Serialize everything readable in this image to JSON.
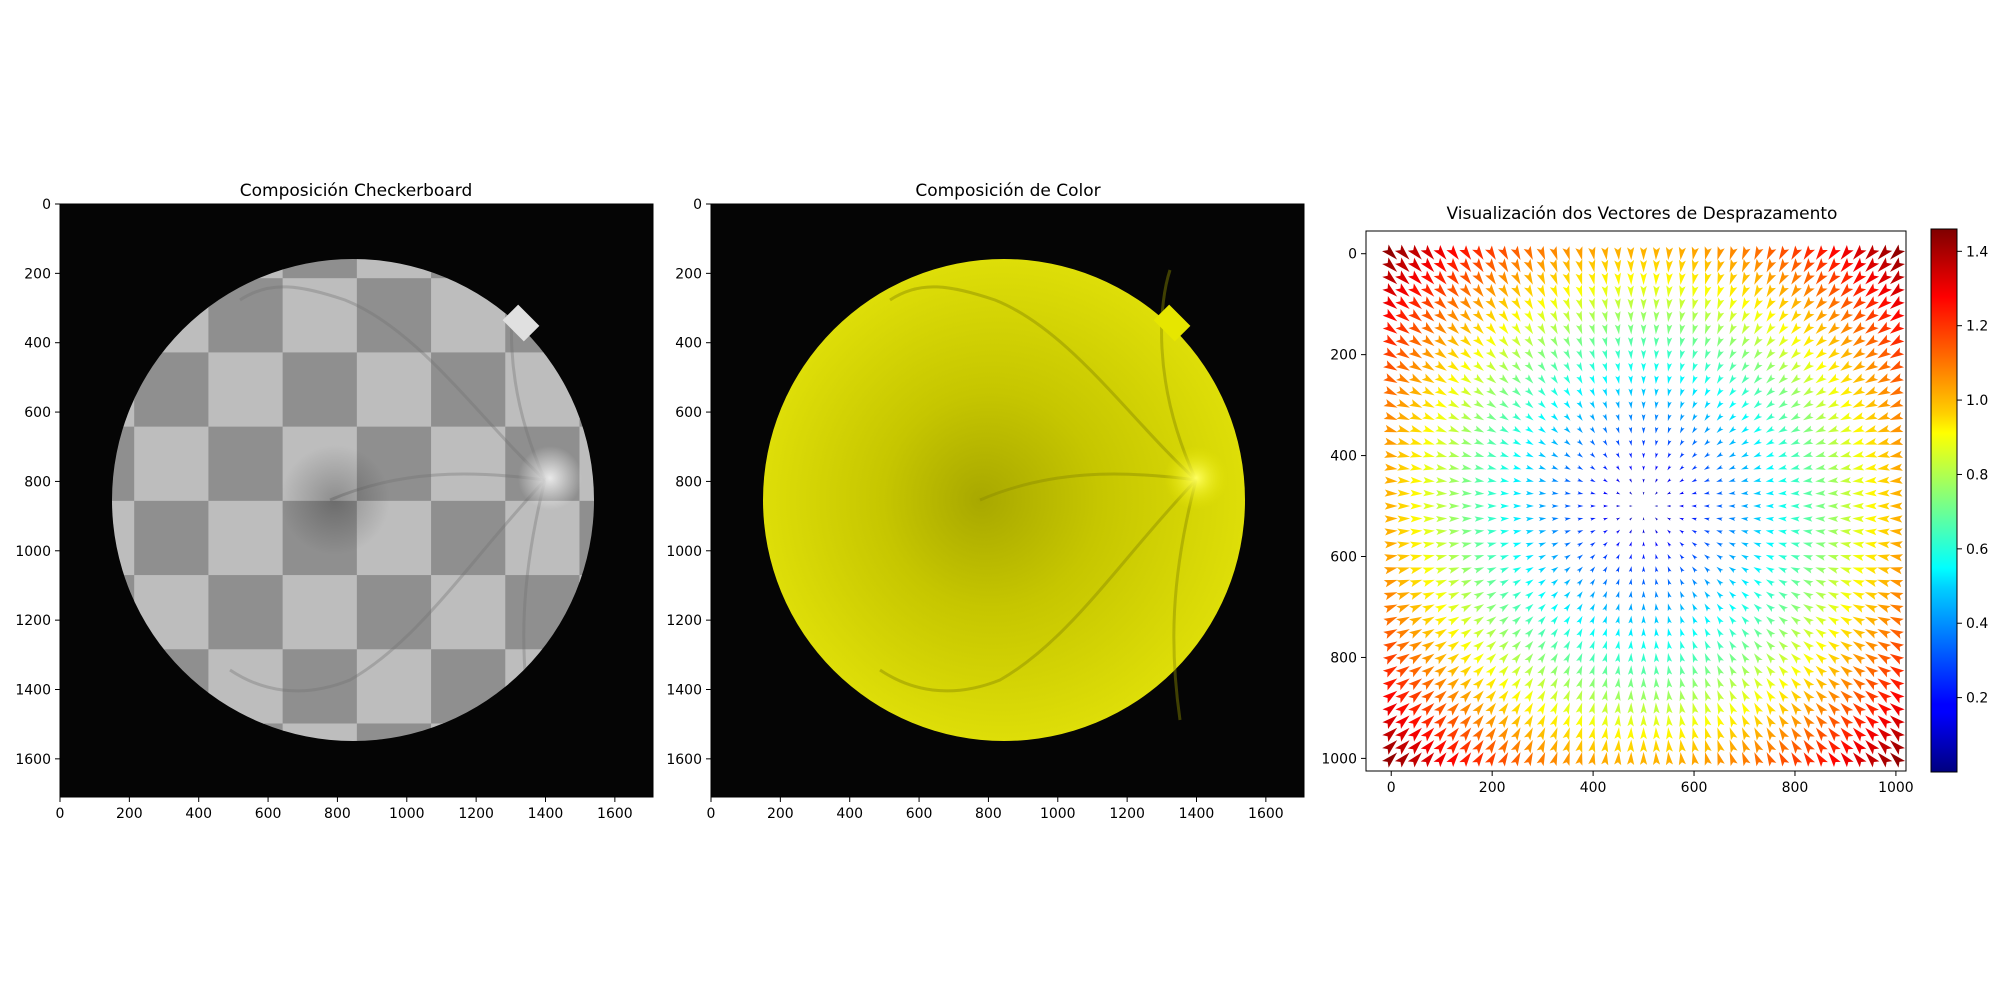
{
  "chart_data": [
    {
      "type": "image",
      "title": "Composición Checkerboard",
      "x_ticks": [
        0,
        200,
        400,
        600,
        800,
        1000,
        1200,
        1400,
        1600
      ],
      "y_ticks": [
        0,
        200,
        400,
        600,
        800,
        1000,
        1200,
        1400,
        1600
      ],
      "xlim": [
        0,
        1710
      ],
      "ylim": [
        1710,
        0
      ],
      "image": {
        "content": "retinal fundus photograph, grayscale checkerboard composite",
        "disc_center": [
          845,
          855
        ],
        "disc_radius": 695,
        "checker_size": 214,
        "light_color": "#bdbdbd",
        "dark_color": "#8f8f8f",
        "background": "#050505"
      }
    },
    {
      "type": "image",
      "title": "Composición de Color",
      "x_ticks": [
        0,
        200,
        400,
        600,
        800,
        1000,
        1200,
        1400,
        1600
      ],
      "y_ticks": [
        0,
        200,
        400,
        600,
        800,
        1000,
        1200,
        1400,
        1600
      ],
      "xlim": [
        0,
        1710
      ],
      "ylim": [
        1710,
        0
      ],
      "image": {
        "content": "retinal fundus photograph, yellow color composite",
        "disc_center": [
          845,
          855
        ],
        "disc_radius": 695,
        "fundus_color": "#d8d800",
        "background": "#050505"
      }
    },
    {
      "type": "quiver",
      "title": "Visualización dos Vectores de Desprazamento",
      "x_ticks": [
        0,
        200,
        400,
        600,
        800,
        1000
      ],
      "y_ticks": [
        0,
        200,
        400,
        600,
        800,
        1000
      ],
      "xlim": [
        -50,
        1020
      ],
      "ylim": [
        1025,
        -45
      ],
      "grid": {
        "start": 0,
        "step": 25,
        "count": 41
      },
      "center": [
        500,
        500
      ],
      "colormap": "jet",
      "colorbar": {
        "ticks": [
          0.2,
          0.4,
          0.6,
          0.8,
          1.0,
          1.2,
          1.4
        ],
        "range": [
          0.0,
          1.46
        ]
      }
    }
  ]
}
